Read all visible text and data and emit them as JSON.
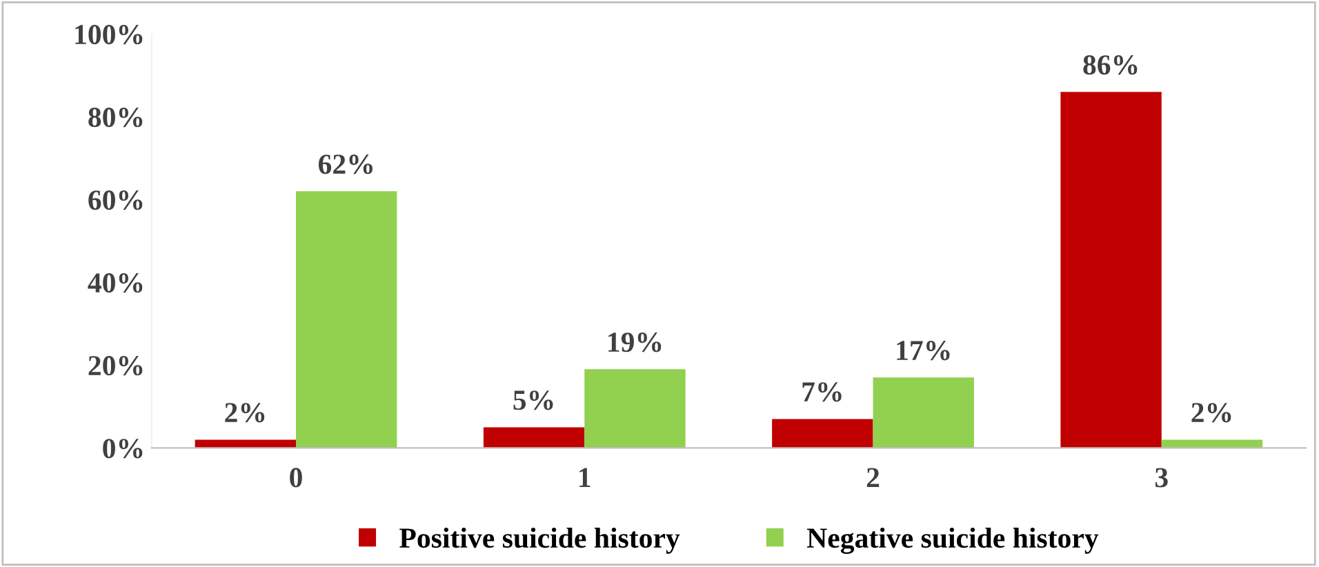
{
  "chart_data": {
    "type": "bar",
    "categories": [
      "0",
      "1",
      "2",
      "3"
    ],
    "series": [
      {
        "name": "Positive suicide history",
        "color": "#c00000",
        "values": [
          2,
          5,
          7,
          86
        ],
        "value_labels": [
          "2%",
          "5%",
          "7%",
          "86%"
        ]
      },
      {
        "name": "Negative suicide history",
        "color": "#92d050",
        "values": [
          62,
          19,
          17,
          2
        ],
        "value_labels": [
          "62%",
          "19%",
          "17%",
          "2%"
        ]
      }
    ],
    "ylim": [
      0,
      100
    ],
    "yticks": [
      {
        "value": 0,
        "label": "0%"
      },
      {
        "value": 20,
        "label": "20%"
      },
      {
        "value": 40,
        "label": "40%"
      },
      {
        "value": 60,
        "label": "60%"
      },
      {
        "value": 80,
        "label": "80%"
      },
      {
        "value": 100,
        "label": "100%"
      }
    ],
    "grid": false,
    "legend": "bottom"
  }
}
